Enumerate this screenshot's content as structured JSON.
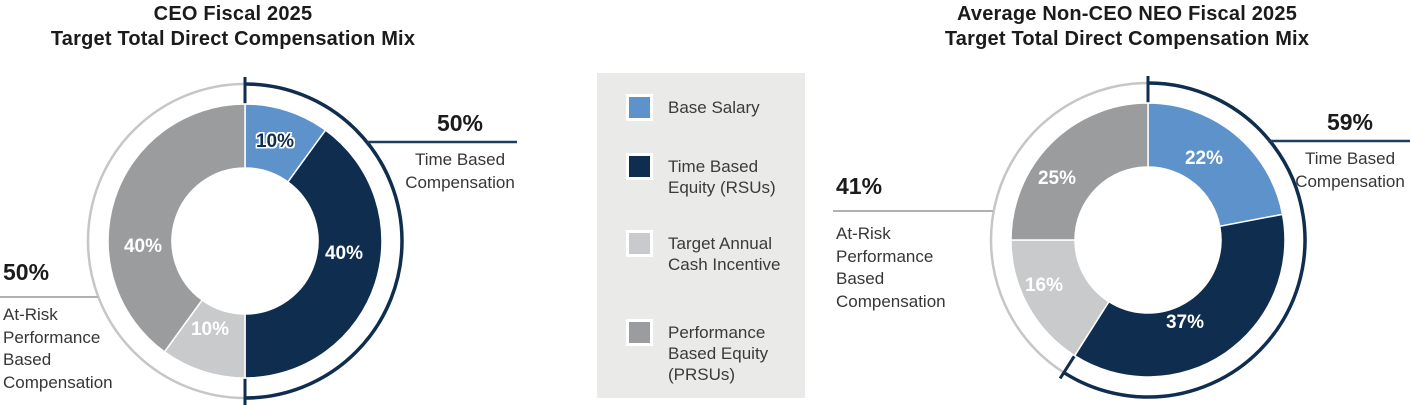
{
  "chart_data": [
    {
      "type": "pie",
      "title": "CEO Fiscal 2025\nTarget Total Direct Compensation Mix",
      "labels": [
        "Base Salary",
        "Time Based Equity (RSUs)",
        "Target Annual Cash Incentive",
        "Performance Based Equity (PRSUs)"
      ],
      "values": [
        10,
        40,
        10,
        40
      ],
      "value_labels": [
        "10%",
        "40%",
        "10%",
        "40%"
      ],
      "annotations": {
        "right": {
          "value": "50%",
          "label": "Time Based\nCompensation"
        },
        "left": {
          "value": "50%",
          "label": "At-Risk\nPerformance\nBased\nCompensation"
        }
      }
    },
    {
      "type": "pie",
      "title": "Average Non-CEO NEO Fiscal 2025\nTarget Total Direct Compensation Mix",
      "labels": [
        "Base Salary",
        "Time Based Equity (RSUs)",
        "Target Annual Cash Incentive",
        "Performance Based Equity (PRSUs)"
      ],
      "values": [
        22,
        37,
        16,
        25
      ],
      "value_labels": [
        "22%",
        "37%",
        "16%",
        "25%"
      ],
      "annotations": {
        "right": {
          "value": "59%",
          "label": "Time Based\nCompensation"
        },
        "left": {
          "value": "41%",
          "label": "At-Risk\nPerformance\nBased\nCompensation"
        }
      }
    }
  ],
  "legend": {
    "items": [
      {
        "label": "Base Salary"
      },
      {
        "label": "Time Based\nEquity (RSUs)"
      },
      {
        "label": "Target Annual\nCash Incentive"
      },
      {
        "label": "Performance\nBased Equity\n(PRSUs)"
      }
    ]
  },
  "colors": {
    "series": [
      "#5e92cb",
      "#0f2d4e",
      "#c9cacb",
      "#9b9c9d"
    ],
    "ring_time_based": "#0f2d4e",
    "ring_at_risk": "#c5c6c6",
    "callout_line_right": "#1d3e5f",
    "callout_line_left": "#b1b1b1",
    "legend_bg": "#eaeae9",
    "value_label_colors": [
      [
        "#0f2d4e",
        "#ffffff",
        "#ffffff",
        "#ffffff"
      ],
      [
        "#ffffff",
        "#ffffff",
        "#ffffff",
        "#ffffff"
      ]
    ]
  }
}
